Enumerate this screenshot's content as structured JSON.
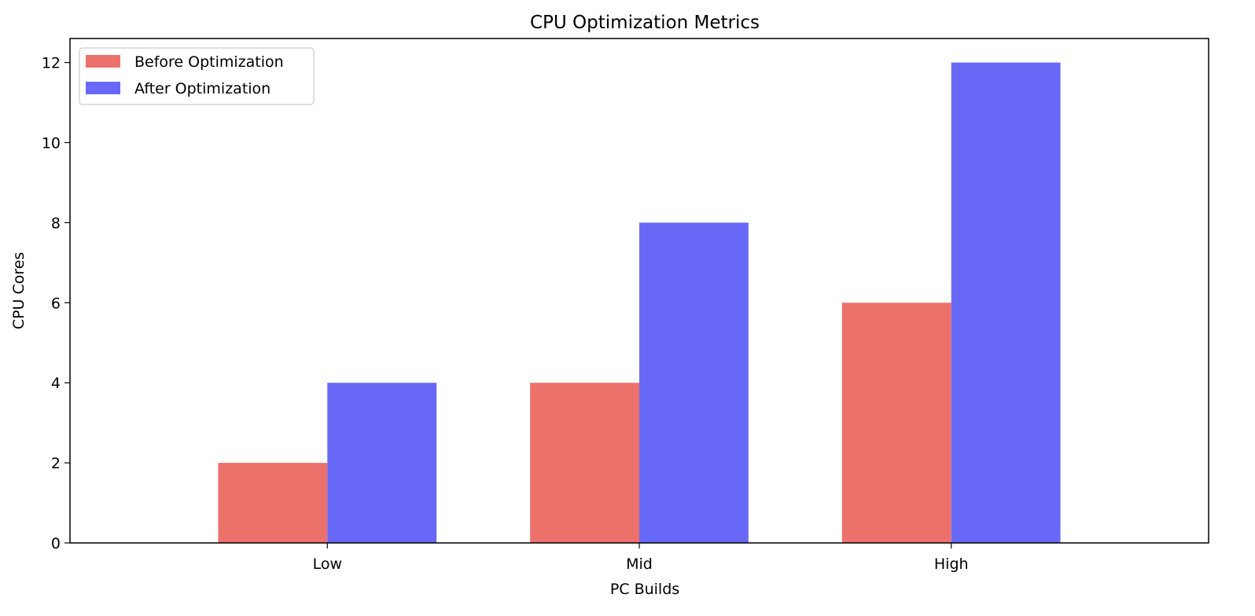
{
  "chart_data": {
    "type": "bar",
    "title": "CPU Optimization Metrics",
    "xlabel": "PC Builds",
    "ylabel": "CPU Cores",
    "categories": [
      "Low",
      "Mid",
      "High"
    ],
    "series": [
      {
        "name": "Before Optimization",
        "values": [
          2,
          4,
          6
        ],
        "color": "#ed716b"
      },
      {
        "name": "After Optimization",
        "values": [
          4,
          8,
          12
        ],
        "color": "#6868f6"
      }
    ],
    "ylim": [
      0,
      12.6
    ],
    "yticks": [
      0,
      2,
      4,
      6,
      8,
      10,
      12
    ],
    "grid": false,
    "legend_position": "upper-left"
  }
}
